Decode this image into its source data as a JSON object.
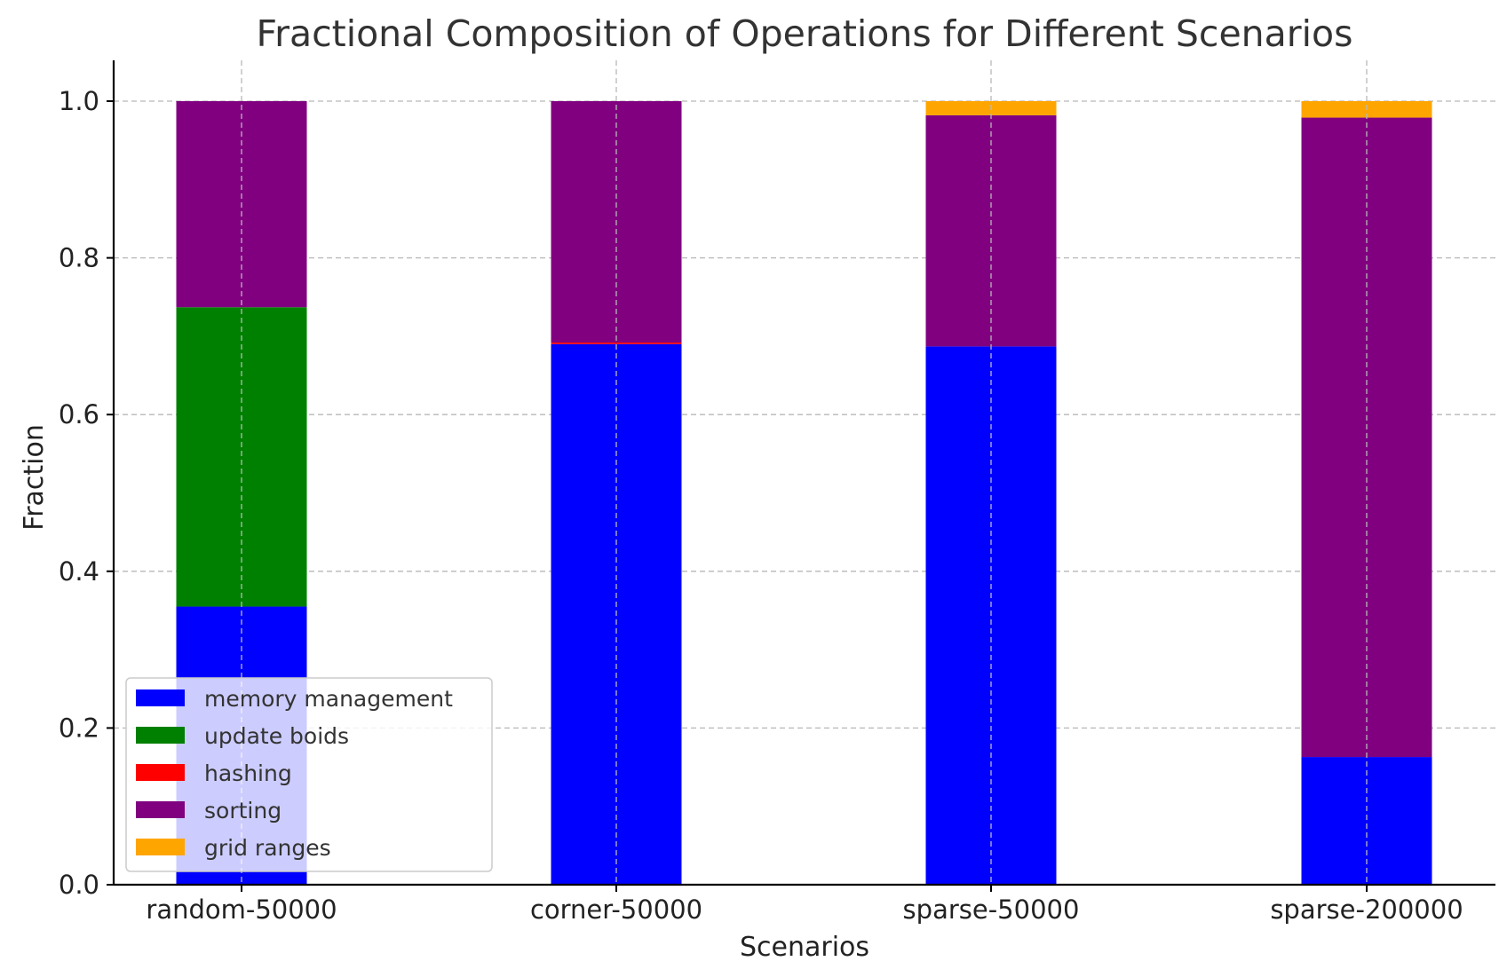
{
  "chart_data": {
    "type": "bar",
    "stacked": true,
    "title": "Fractional Composition of Operations for Different Scenarios",
    "xlabel": "Scenarios",
    "ylabel": "Fraction",
    "categories": [
      "random-50000",
      "corner-50000",
      "sparse-50000",
      "sparse-200000"
    ],
    "ylim": [
      0,
      1.05
    ],
    "yticks": [
      0.0,
      0.2,
      0.4,
      0.6,
      0.8,
      1.0
    ],
    "ytick_labels": [
      "0.0",
      "0.2",
      "0.4",
      "0.6",
      "0.8",
      "1.0"
    ],
    "grid": true,
    "legend_position": "lower-left",
    "series": [
      {
        "name": "memory management",
        "color": "#0000ff",
        "values": [
          0.355,
          0.69,
          0.687,
          0.163
        ]
      },
      {
        "name": "update boids",
        "color": "#008000",
        "values": [
          0.382,
          0.0,
          0.0,
          0.0
        ]
      },
      {
        "name": "hashing",
        "color": "#ff0000",
        "values": [
          0.0,
          0.002,
          0.0,
          0.0
        ]
      },
      {
        "name": "sorting",
        "color": "#800080",
        "values": [
          0.263,
          0.308,
          0.295,
          0.816
        ]
      },
      {
        "name": "grid ranges",
        "color": "#ffa500",
        "values": [
          0.0,
          0.0,
          0.018,
          0.021
        ]
      }
    ]
  }
}
